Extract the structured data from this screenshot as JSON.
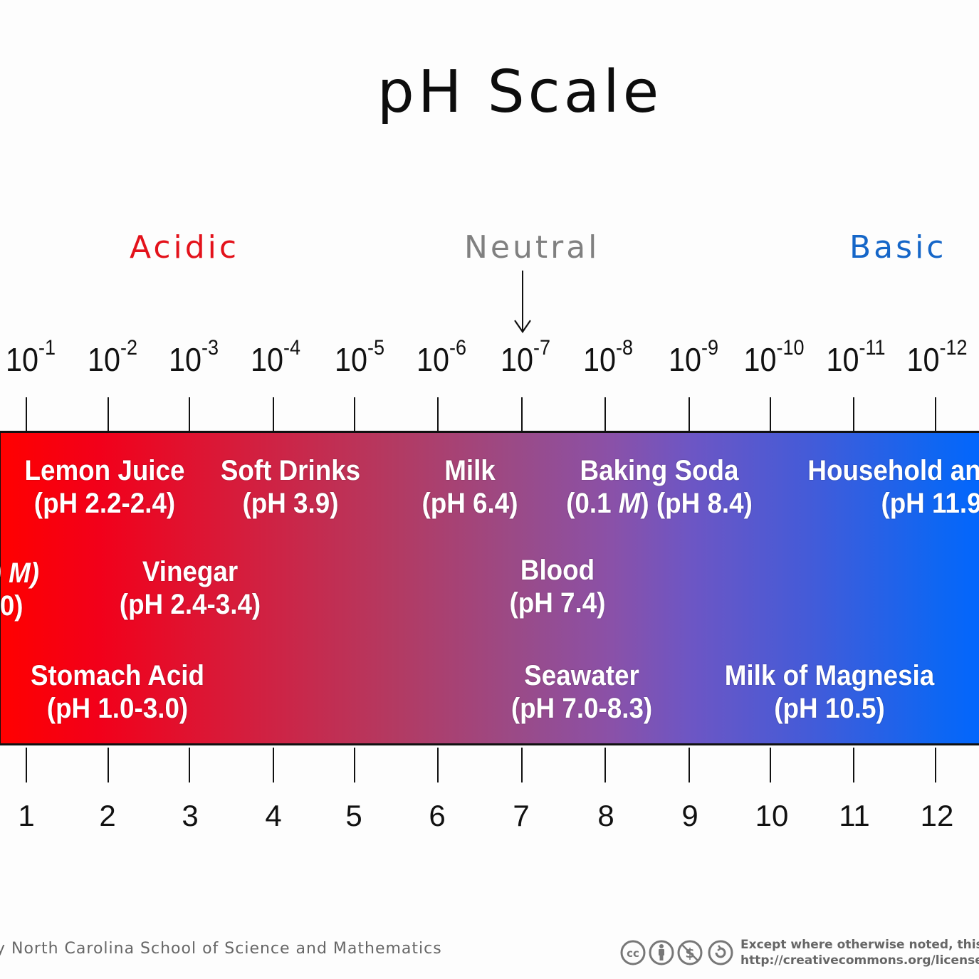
{
  "title": "pH Scale",
  "regions": {
    "acidic": "Acidic",
    "neutral": "Neutral",
    "basic": "Basic"
  },
  "colors": {
    "acidic": "#e3121b",
    "neutral": "#808080",
    "basic": "#1566c8",
    "band_start": "#ff0000",
    "band_end": "#0066ff"
  },
  "scale": {
    "concentrations": [
      {
        "base": "10",
        "exp": "-1"
      },
      {
        "base": "10",
        "exp": "-2"
      },
      {
        "base": "10",
        "exp": "-3"
      },
      {
        "base": "10",
        "exp": "-4"
      },
      {
        "base": "10",
        "exp": "-5"
      },
      {
        "base": "10",
        "exp": "-6"
      },
      {
        "base": "10",
        "exp": "-7"
      },
      {
        "base": "10",
        "exp": "-8"
      },
      {
        "base": "10",
        "exp": "-9"
      },
      {
        "base": "10",
        "exp": "-10"
      },
      {
        "base": "10",
        "exp": "-11"
      },
      {
        "base": "10",
        "exp": "-12"
      }
    ],
    "ph_values": [
      "1",
      "2",
      "3",
      "4",
      "5",
      "6",
      "7",
      "8",
      "9",
      "10",
      "11",
      "12"
    ]
  },
  "substances": [
    {
      "name": "Lemon Juice",
      "ph": "(pH 2.2-2.4)"
    },
    {
      "name": "Soft Drinks",
      "ph": "(pH 3.9)"
    },
    {
      "name": "Milk",
      "ph": "(pH 6.4)"
    },
    {
      "name": "Baking Soda",
      "ph_pre": "(0.1 ",
      "ph_unit": "M",
      "ph_post": ") (pH 8.4)"
    },
    {
      "name": "Household an",
      "ph": "(pH 11.9"
    },
    {
      "name": ") M)",
      "ph": ".0)"
    },
    {
      "name": "Vinegar",
      "ph": "(pH  2.4-3.4)"
    },
    {
      "name": "Blood",
      "ph": "(pH 7.4)"
    },
    {
      "name": "Stomach Acid",
      "ph": "(pH 1.0-3.0)"
    },
    {
      "name": "Seawater",
      "ph": "(pH 7.0-8.3)"
    },
    {
      "name": "Milk of Magnesia",
      "ph": "(pH 10.5)"
    }
  ],
  "footer": {
    "credit": "y North Carolina School of Science and Mathematics",
    "license_line1": "Except where otherwise noted, this work",
    "license_line2": "http://creativecommons.org/license"
  }
}
